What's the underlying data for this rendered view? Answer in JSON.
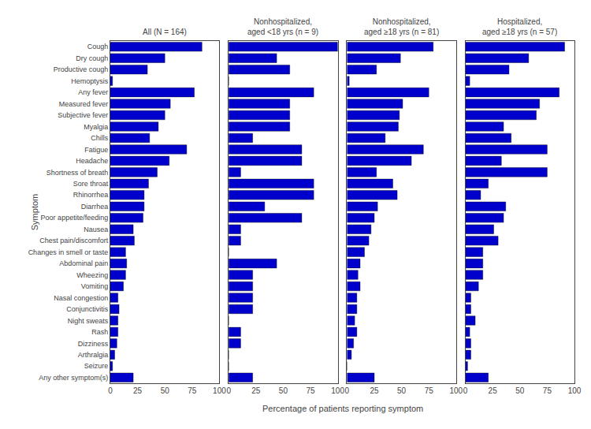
{
  "chart_data": [
    {
      "type": "bar",
      "orientation": "horizontal",
      "title": "All (N = 164)",
      "categories": [
        "Cough",
        "Dry cough",
        "Productive cough",
        "Hemoptysis",
        "Any fever",
        "Measured fever",
        "Subjective fever",
        "Myalgia",
        "Chills",
        "Fatigue",
        "Headache",
        "Shortness of breath",
        "Sore throat",
        "Rhinorrhea",
        "Diarrhea",
        "Poor appetite/feeding",
        "Nausea",
        "Chest pain/discomfort",
        "Changes in smell or taste",
        "Abdominal pain",
        "Wheezing",
        "Vomiting",
        "Nasal congestion",
        "Conjunctivitis",
        "Night sweats",
        "Rash",
        "Dizziness",
        "Arthralgia",
        "Seizure",
        "Any other symptom(s)"
      ],
      "values": [
        84,
        50,
        34,
        2,
        77,
        55,
        50,
        44,
        36,
        70,
        54,
        43,
        35,
        31,
        31,
        30,
        21,
        22,
        14,
        15,
        14,
        12,
        7,
        8,
        7,
        7,
        6,
        4,
        2,
        21
      ],
      "color": "#0000CC",
      "xlabel": "Percentage of patients reporting symptom",
      "ylabel": "Symptom",
      "xlim": [
        0,
        100
      ],
      "xticks": [
        0,
        25,
        50,
        75,
        100
      ],
      "grid": false
    },
    {
      "type": "bar",
      "orientation": "horizontal",
      "title": "Nonhospitalized,\naged <18 yrs (n = 9)",
      "categories": [
        "Cough",
        "Dry cough",
        "Productive cough",
        "Hemoptysis",
        "Any fever",
        "Measured fever",
        "Subjective fever",
        "Myalgia",
        "Chills",
        "Fatigue",
        "Headache",
        "Shortness of breath",
        "Sore throat",
        "Rhinorrhea",
        "Diarrhea",
        "Poor appetite/feeding",
        "Nausea",
        "Chest pain/discomfort",
        "Changes in smell or taste",
        "Abdominal pain",
        "Wheezing",
        "Vomiting",
        "Nasal congestion",
        "Conjunctivitis",
        "Night sweats",
        "Rash",
        "Dizziness",
        "Arthralgia",
        "Seizure",
        "Any other symptom(s)"
      ],
      "values": [
        100,
        44,
        56,
        0,
        78,
        56,
        56,
        56,
        22,
        67,
        67,
        11,
        78,
        78,
        33,
        67,
        11,
        11,
        0,
        44,
        22,
        22,
        22,
        22,
        0,
        11,
        11,
        0,
        0,
        22
      ],
      "color": "#0000CC",
      "xlim": [
        0,
        100
      ],
      "xticks": [
        0,
        25,
        50,
        75,
        100
      ],
      "grid": false,
      "tick_labels": "x"
    },
    {
      "type": "bar",
      "orientation": "horizontal",
      "title": "Nonhospitalized,\naged ≥18 yrs (n = 81)",
      "categories": [
        "Cough",
        "Dry cough",
        "Productive cough",
        "Hemoptysis",
        "Any fever",
        "Measured fever",
        "Subjective fever",
        "Myalgia",
        "Chills",
        "Fatigue",
        "Headache",
        "Shortness of breath",
        "Sore throat",
        "Rhinorrhea",
        "Diarrhea",
        "Poor appetite/feeding",
        "Nausea",
        "Chest pain/discomfort",
        "Changes in smell or taste",
        "Abdominal pain",
        "Wheezing",
        "Vomiting",
        "Nasal congestion",
        "Conjunctivitis",
        "Night sweats",
        "Rash",
        "Dizziness",
        "Arthralgia",
        "Seizure",
        "Any other symptom(s)"
      ],
      "values": [
        79,
        49,
        27,
        2,
        75,
        51,
        48,
        47,
        35,
        70,
        59,
        27,
        42,
        46,
        28,
        25,
        22,
        20,
        16,
        12,
        10,
        12,
        9,
        9,
        7,
        9,
        6,
        4,
        0,
        25
      ],
      "color": "#0000CC",
      "xlim": [
        0,
        100
      ],
      "xticks": [
        0,
        25,
        50,
        75,
        100
      ],
      "grid": false,
      "tick_labels": "x"
    },
    {
      "type": "bar",
      "orientation": "horizontal",
      "title": "Hospitalized,\naged ≥18 yrs (n = 57)",
      "categories": [
        "Cough",
        "Dry cough",
        "Productive cough",
        "Hemoptysis",
        "Any fever",
        "Measured fever",
        "Subjective fever",
        "Myalgia",
        "Chills",
        "Fatigue",
        "Headache",
        "Shortness of breath",
        "Sore throat",
        "Rhinorrhea",
        "Diarrhea",
        "Poor appetite/feeding",
        "Nausea",
        "Chest pain/discomfort",
        "Changes in smell or taste",
        "Abdominal pain",
        "Wheezing",
        "Vomiting",
        "Nasal congestion",
        "Conjunctivitis",
        "Night sweats",
        "Rash",
        "Dizziness",
        "Arthralgia",
        "Seizure",
        "Any other symptom(s)"
      ],
      "values": [
        91,
        58,
        40,
        4,
        86,
        68,
        65,
        35,
        42,
        75,
        33,
        75,
        21,
        14,
        37,
        35,
        26,
        30,
        16,
        16,
        16,
        12,
        5,
        5,
        9,
        4,
        5,
        5,
        2,
        21
      ],
      "color": "#0000CC",
      "xlim": [
        0,
        100
      ],
      "xticks": [
        0,
        25,
        50,
        75,
        100
      ],
      "grid": false,
      "tick_labels": "x"
    }
  ]
}
